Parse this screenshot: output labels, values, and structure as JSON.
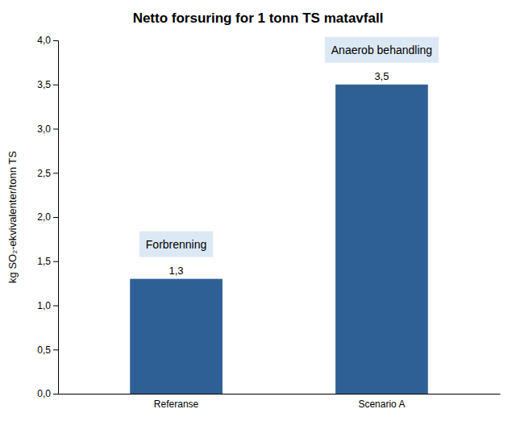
{
  "chart_data": {
    "type": "bar",
    "title": "Netto forsuring for 1 tonn TS matavfall",
    "categories": [
      "Referanse",
      "Scenario A"
    ],
    "values": [
      1.3,
      3.5
    ],
    "value_labels": [
      "1,3",
      "3,5"
    ],
    "data_labels": true,
    "color": "#2E6095",
    "ylabel": "kg SO₂-ekvivalenter/tonn TS",
    "ylim": [
      0,
      4.0
    ],
    "yticks": [
      {
        "value": 0.0,
        "label": "0,0"
      },
      {
        "value": 0.5,
        "label": "0,5"
      },
      {
        "value": 1.0,
        "label": "1,0"
      },
      {
        "value": 1.5,
        "label": "1,5"
      },
      {
        "value": 2.0,
        "label": "2,0"
      },
      {
        "value": 2.5,
        "label": "2,5"
      },
      {
        "value": 3.0,
        "label": "3,0"
      },
      {
        "value": 3.5,
        "label": "3,5"
      },
      {
        "value": 4.0,
        "label": "4,0"
      }
    ],
    "grid": false,
    "annotations": [
      "Forbrenning",
      "Anaerob behandling"
    ]
  }
}
